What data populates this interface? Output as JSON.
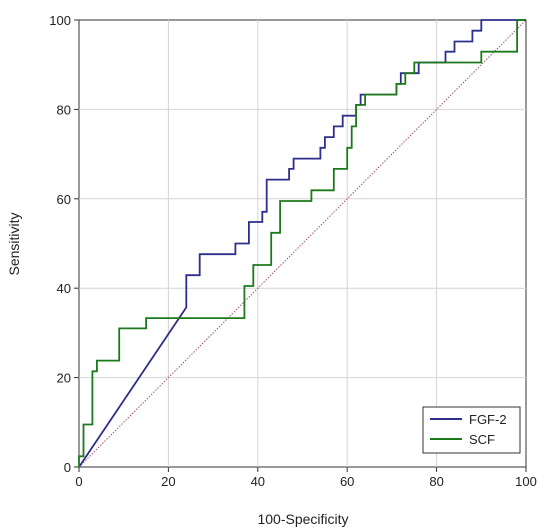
{
  "chart_data": {
    "type": "line",
    "title": "",
    "xlabel": "100-Specificity",
    "ylabel": "Sensitivity",
    "xlim": [
      0,
      100
    ],
    "ylim": [
      0,
      100
    ],
    "xticks": [
      0,
      20,
      40,
      60,
      80,
      100
    ],
    "yticks": [
      0,
      20,
      40,
      60,
      80,
      100
    ],
    "grid": true,
    "legend_position": "bottom-right",
    "reference_line": {
      "from": [
        0,
        0
      ],
      "to": [
        100,
        100
      ],
      "color": "#a0526d",
      "style": "dotted"
    },
    "series": [
      {
        "name": "FGF-2",
        "color": "#2e2e8c",
        "points": [
          [
            0,
            0
          ],
          [
            24,
            35.7
          ],
          [
            24,
            42.9
          ],
          [
            27,
            42.9
          ],
          [
            27,
            47.6
          ],
          [
            35,
            47.6
          ],
          [
            35,
            50
          ],
          [
            38,
            50
          ],
          [
            38,
            54.8
          ],
          [
            41,
            54.8
          ],
          [
            41,
            57.1
          ],
          [
            42,
            57.1
          ],
          [
            42,
            64.3
          ],
          [
            47,
            64.3
          ],
          [
            47,
            66.7
          ],
          [
            48,
            66.7
          ],
          [
            48,
            69
          ],
          [
            54,
            69
          ],
          [
            54,
            71.4
          ],
          [
            55,
            71.4
          ],
          [
            55,
            73.8
          ],
          [
            57,
            73.8
          ],
          [
            57,
            76.2
          ],
          [
            59,
            76.2
          ],
          [
            59,
            78.6
          ],
          [
            62,
            78.6
          ],
          [
            62,
            81
          ],
          [
            63,
            81
          ],
          [
            63,
            83.3
          ],
          [
            71,
            83.3
          ],
          [
            71,
            85.7
          ],
          [
            72,
            85.7
          ],
          [
            72,
            88.1
          ],
          [
            76,
            88.1
          ],
          [
            76,
            90.5
          ],
          [
            82,
            90.5
          ],
          [
            82,
            92.9
          ],
          [
            84,
            92.9
          ],
          [
            84,
            95.2
          ],
          [
            88,
            95.2
          ],
          [
            88,
            97.6
          ],
          [
            90,
            97.6
          ],
          [
            90,
            100
          ],
          [
            100,
            100
          ]
        ]
      },
      {
        "name": "SCF",
        "color": "#1c7a1c",
        "points": [
          [
            0,
            0
          ],
          [
            0,
            2.4
          ],
          [
            1,
            2.4
          ],
          [
            1,
            9.5
          ],
          [
            3,
            9.5
          ],
          [
            3,
            21.4
          ],
          [
            4,
            21.4
          ],
          [
            4,
            23.8
          ],
          [
            9,
            23.8
          ],
          [
            9,
            31
          ],
          [
            15,
            31
          ],
          [
            15,
            33.3
          ],
          [
            37,
            33.3
          ],
          [
            37,
            40.5
          ],
          [
            39,
            40.5
          ],
          [
            39,
            45.2
          ],
          [
            43,
            45.2
          ],
          [
            43,
            52.4
          ],
          [
            45,
            52.4
          ],
          [
            45,
            59.5
          ],
          [
            52,
            59.5
          ],
          [
            52,
            61.9
          ],
          [
            57,
            61.9
          ],
          [
            57,
            66.7
          ],
          [
            60,
            66.7
          ],
          [
            60,
            71.4
          ],
          [
            61,
            71.4
          ],
          [
            61,
            76.2
          ],
          [
            62,
            76.2
          ],
          [
            62,
            81
          ],
          [
            64,
            81
          ],
          [
            64,
            83.3
          ],
          [
            71,
            83.3
          ],
          [
            71,
            85.7
          ],
          [
            73,
            85.7
          ],
          [
            73,
            88.1
          ],
          [
            75,
            88.1
          ],
          [
            75,
            90.5
          ],
          [
            90,
            90.5
          ],
          [
            90,
            92.9
          ],
          [
            98,
            92.9
          ],
          [
            98,
            100
          ],
          [
            100,
            100
          ]
        ]
      }
    ]
  }
}
